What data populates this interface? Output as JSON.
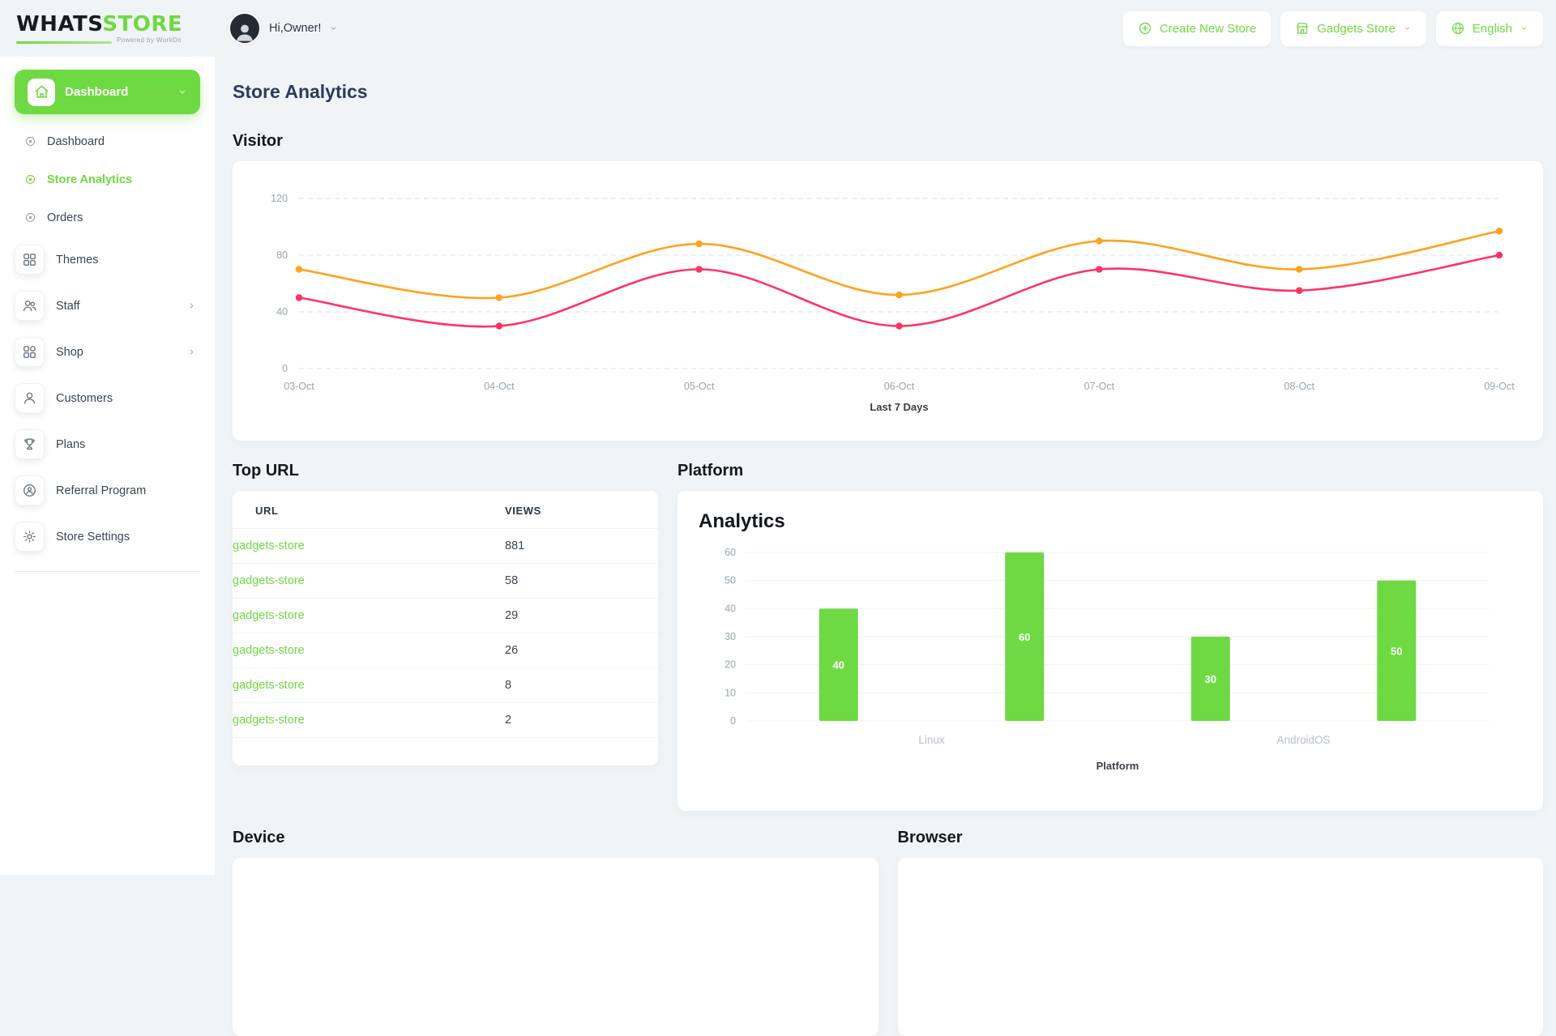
{
  "colors": {
    "accent": "#6fd943",
    "line_series_1": "#ffa21d",
    "line_series_2": "#ff3364"
  },
  "header": {
    "logo_primary": "WHATS",
    "logo_secondary": "STORE",
    "logo_tagline": "Powered by WorkDo",
    "greeting": "Hi,Owner!",
    "create_store_label": "Create New Store",
    "store_selector_label": "Gadgets Store",
    "language_label": "English"
  },
  "sidebar": {
    "dashboard_group": {
      "label": "Dashboard"
    },
    "sub_items": [
      {
        "label": "Dashboard"
      },
      {
        "label": "Store Analytics",
        "active": true
      },
      {
        "label": "Orders"
      }
    ],
    "items": [
      {
        "label": "Themes"
      },
      {
        "label": "Staff",
        "has_submenu": true
      },
      {
        "label": "Shop",
        "has_submenu": true
      },
      {
        "label": "Customers"
      },
      {
        "label": "Plans"
      },
      {
        "label": "Referral Program"
      },
      {
        "label": "Store Settings"
      }
    ]
  },
  "page": {
    "title": "Store Analytics"
  },
  "sections": {
    "visitor": "Visitor",
    "top_url": "Top URL",
    "platform": "Platform",
    "device": "Device",
    "browser": "Browser"
  },
  "top_url_table": {
    "headers": {
      "url": "URL",
      "views": "VIEWS"
    },
    "rows": [
      {
        "url": "gadgets-store",
        "views": "881"
      },
      {
        "url": "gadgets-store",
        "views": "58"
      },
      {
        "url": "gadgets-store",
        "views": "29"
      },
      {
        "url": "gadgets-store",
        "views": "26"
      },
      {
        "url": "gadgets-store",
        "views": "8"
      },
      {
        "url": "gadgets-store",
        "views": "2"
      }
    ]
  },
  "chart_data": [
    {
      "id": "visitor",
      "type": "line",
      "x": [
        "03-Oct",
        "04-Oct",
        "05-Oct",
        "06-Oct",
        "07-Oct",
        "08-Oct",
        "09-Oct"
      ],
      "series": [
        {
          "name": "series-1",
          "color": "#ffa21d",
          "values": [
            70,
            50,
            88,
            52,
            90,
            70,
            97
          ]
        },
        {
          "name": "series-2",
          "color": "#ff3364",
          "values": [
            50,
            30,
            70,
            30,
            70,
            55,
            80
          ]
        }
      ],
      "ylim": [
        0,
        120
      ],
      "yticks": [
        0,
        40,
        80,
        120
      ],
      "xlabel": "Last 7 Days",
      "grid": "dashed-horizontal",
      "legend": "none"
    },
    {
      "id": "platform",
      "type": "bar",
      "title": "Analytics",
      "groups": [
        {
          "label": "Linux",
          "values": [
            40,
            60
          ]
        },
        {
          "label": "AndroidOS",
          "values": [
            30,
            50
          ]
        }
      ],
      "ylim": [
        0,
        60
      ],
      "yticks": [
        0,
        10,
        20,
        30,
        40,
        50,
        60
      ],
      "xlabel": "Platform",
      "bar_color": "#6fd943",
      "value_labels": "inside-white"
    }
  ]
}
